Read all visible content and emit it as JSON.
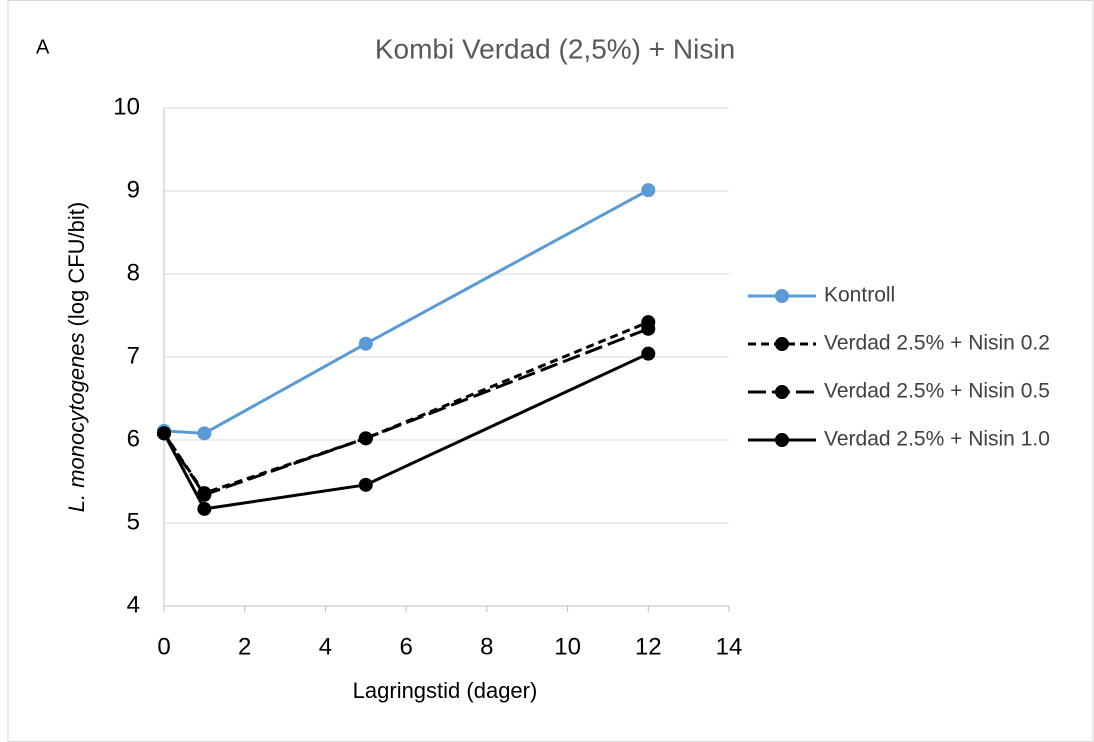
{
  "chart_data": {
    "type": "line",
    "title": "Kombi Verdad (2,5%)  + Nisin",
    "annotation": "A",
    "xlabel": "Lagringstid (dager)",
    "ylabel": [
      "L. monocytogenes",
      "(log CFU/bit)"
    ],
    "x": [
      0,
      1,
      5,
      12
    ],
    "xlim": [
      0,
      14
    ],
    "xticks": [
      0,
      2,
      4,
      6,
      8,
      10,
      12,
      14
    ],
    "ylim": [
      4,
      10
    ],
    "yticks": [
      4,
      5,
      6,
      7,
      8,
      9,
      10
    ],
    "grid": true,
    "legend": "right",
    "series": [
      {
        "name": "Kontroll",
        "color": "#5b9bd5",
        "dash": "solid",
        "values": [
          6.11,
          6.08,
          7.16,
          9.01
        ]
      },
      {
        "name": "Verdad 2.5% + Nisin 0.2",
        "color": "#000000",
        "dash": "dashed",
        "values": [
          6.08,
          5.36,
          6.02,
          7.42
        ]
      },
      {
        "name": "Verdad 2.5% + Nisin 0.5",
        "color": "#000000",
        "dash": "longdash",
        "values": [
          6.08,
          5.34,
          6.02,
          7.34
        ]
      },
      {
        "name": "Verdad 2.5% + Nisin 1.0",
        "color": "#000000",
        "dash": "solid",
        "values": [
          6.08,
          5.17,
          5.46,
          7.04
        ]
      }
    ]
  }
}
